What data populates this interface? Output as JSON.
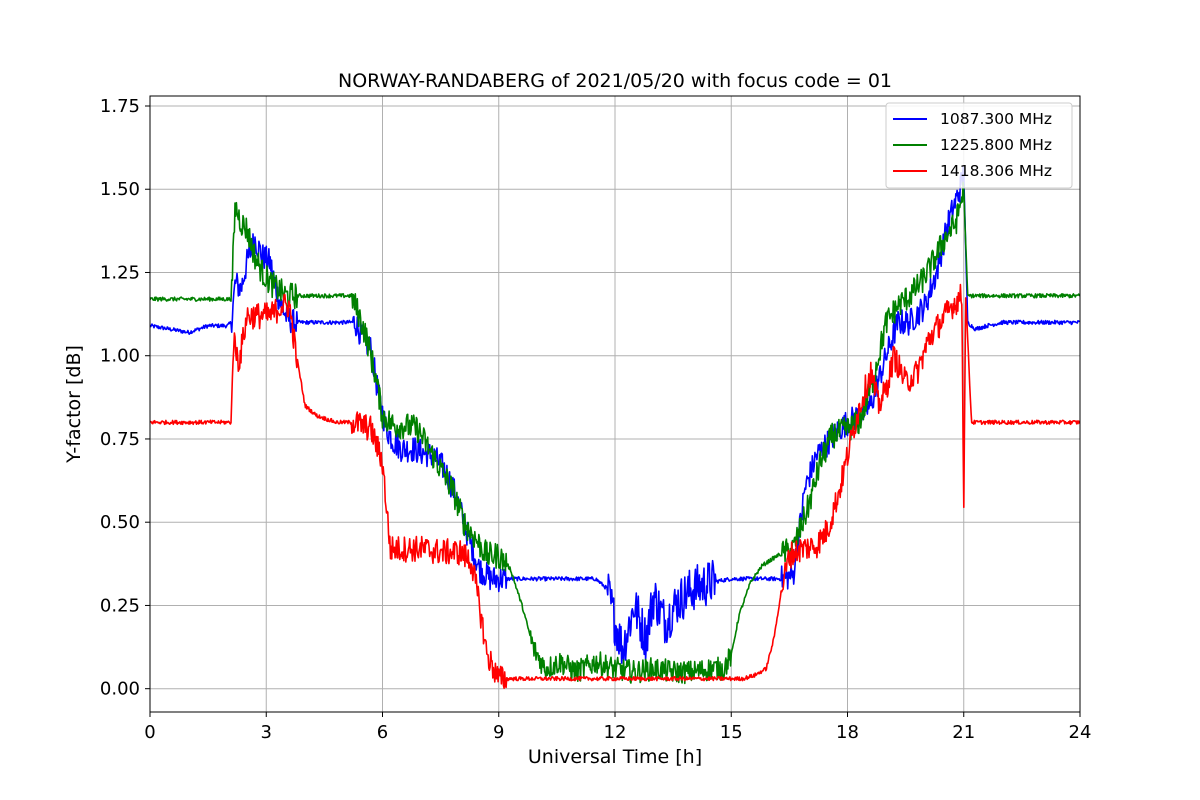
{
  "chart_data": {
    "type": "line",
    "title": "NORWAY-RANDABERG of 2021/05/20 with focus code = 01",
    "xlabel": "Universal Time [h]",
    "ylabel": "Y-factor [dB]",
    "xlim": [
      0,
      24
    ],
    "ylim": [
      -0.07,
      1.78
    ],
    "xticks": [
      0,
      3,
      6,
      9,
      12,
      15,
      18,
      21,
      24
    ],
    "xtick_labels": [
      "0",
      "3",
      "6",
      "9",
      "12",
      "15",
      "18",
      "21",
      "24"
    ],
    "yticks": [
      0.0,
      0.25,
      0.5,
      0.75,
      1.0,
      1.25,
      1.5,
      1.75
    ],
    "ytick_labels": [
      "0.00",
      "0.25",
      "0.50",
      "0.75",
      "1.00",
      "1.25",
      "1.50",
      "1.75"
    ],
    "grid": true,
    "legend_position": "top-right",
    "series": [
      {
        "name": "1087.300 MHz",
        "color": "#0000ff",
        "x": [
          0,
          0.5,
          1,
          1.5,
          2.0,
          2.1,
          2.2,
          2.35,
          2.5,
          2.7,
          2.9,
          3.1,
          3.3,
          3.5,
          3.7,
          4.0,
          4.5,
          5.0,
          5.3,
          5.5,
          5.7,
          5.9,
          6.1,
          6.3,
          6.5,
          6.8,
          7.0,
          7.3,
          7.6,
          7.9,
          8.2,
          8.5,
          8.8,
          9.2,
          9.5,
          10.0,
          10.5,
          11.0,
          11.5,
          11.8,
          12.0,
          12.2,
          12.5,
          12.8,
          13.0,
          13.3,
          13.6,
          14.0,
          14.5,
          15.0,
          15.3,
          15.6,
          16.0,
          16.3,
          16.6,
          16.9,
          17.2,
          17.5,
          17.8,
          18.0,
          18.3,
          18.6,
          19.0,
          19.3,
          19.6,
          20.0,
          20.3,
          20.6,
          20.9,
          21.0,
          21.1,
          21.3,
          21.6,
          22.0,
          22.5,
          23.0,
          23.5,
          24.0
        ],
        "y": [
          1.09,
          1.08,
          1.07,
          1.09,
          1.09,
          1.1,
          1.22,
          1.2,
          1.28,
          1.35,
          1.3,
          1.28,
          1.18,
          1.12,
          1.1,
          1.1,
          1.1,
          1.1,
          1.1,
          1.05,
          1.02,
          0.88,
          0.78,
          0.74,
          0.72,
          0.72,
          0.71,
          0.7,
          0.66,
          0.58,
          0.46,
          0.36,
          0.33,
          0.33,
          0.33,
          0.33,
          0.33,
          0.33,
          0.33,
          0.3,
          0.2,
          0.12,
          0.25,
          0.15,
          0.28,
          0.2,
          0.26,
          0.3,
          0.32,
          0.33,
          0.33,
          0.33,
          0.33,
          0.33,
          0.34,
          0.6,
          0.7,
          0.74,
          0.78,
          0.8,
          0.82,
          0.85,
          1.0,
          1.1,
          1.1,
          1.15,
          1.25,
          1.4,
          1.5,
          1.55,
          1.1,
          1.08,
          1.09,
          1.1,
          1.1,
          1.1,
          1.1,
          1.1
        ]
      },
      {
        "name": "1225.800 MHz",
        "color": "#008000",
        "x": [
          0,
          0.5,
          1,
          1.5,
          2.0,
          2.1,
          2.2,
          2.35,
          2.5,
          2.7,
          2.9,
          3.1,
          3.3,
          3.5,
          3.7,
          4.0,
          4.5,
          5.0,
          5.2,
          5.4,
          5.6,
          5.8,
          6.0,
          6.3,
          6.6,
          6.9,
          7.2,
          7.5,
          7.8,
          8.1,
          8.4,
          8.7,
          9.0,
          9.3,
          9.6,
          9.9,
          10.2,
          10.6,
          11.0,
          11.5,
          12.0,
          12.5,
          13.0,
          13.5,
          14.0,
          14.5,
          14.8,
          15.0,
          15.2,
          15.5,
          15.8,
          16.2,
          16.6,
          17.0,
          17.3,
          17.6,
          18.0,
          18.3,
          18.6,
          19.0,
          19.3,
          19.6,
          19.9,
          20.2,
          20.5,
          20.8,
          21.0,
          21.1,
          21.5,
          22.0,
          22.5,
          23.0,
          23.5,
          24.0
        ],
        "y": [
          1.17,
          1.17,
          1.17,
          1.17,
          1.17,
          1.17,
          1.45,
          1.4,
          1.38,
          1.3,
          1.25,
          1.22,
          1.2,
          1.18,
          1.18,
          1.18,
          1.18,
          1.18,
          1.18,
          1.12,
          1.05,
          0.95,
          0.82,
          0.79,
          0.79,
          0.78,
          0.72,
          0.66,
          0.6,
          0.5,
          0.45,
          0.4,
          0.4,
          0.36,
          0.25,
          0.12,
          0.06,
          0.08,
          0.05,
          0.08,
          0.06,
          0.05,
          0.06,
          0.05,
          0.05,
          0.06,
          0.06,
          0.1,
          0.22,
          0.32,
          0.37,
          0.4,
          0.42,
          0.55,
          0.68,
          0.76,
          0.78,
          0.8,
          0.9,
          1.1,
          1.15,
          1.18,
          1.22,
          1.28,
          1.35,
          1.4,
          1.5,
          1.18,
          1.18,
          1.18,
          1.18,
          1.18,
          1.18,
          1.18
        ]
      },
      {
        "name": "1418.306 MHz",
        "color": "#ff0000",
        "x": [
          0,
          0.5,
          1,
          1.5,
          2.0,
          2.1,
          2.15,
          2.3,
          2.5,
          2.8,
          3.1,
          3.4,
          3.6,
          3.75,
          3.9,
          4.0,
          4.3,
          4.8,
          5.3,
          5.7,
          6.0,
          6.2,
          6.3,
          6.6,
          7.0,
          7.5,
          8.0,
          8.3,
          8.5,
          8.7,
          9.0,
          9.5,
          10.0,
          10.5,
          11.0,
          11.5,
          12.0,
          12.5,
          13.0,
          13.5,
          14.0,
          14.5,
          15.0,
          15.3,
          15.6,
          15.9,
          16.1,
          16.3,
          16.5,
          16.8,
          17.2,
          17.5,
          17.8,
          18.0,
          18.2,
          18.4,
          18.6,
          18.8,
          19.0,
          19.2,
          19.5,
          19.8,
          20.1,
          20.4,
          20.7,
          20.95,
          21.0,
          21.05,
          21.2,
          21.5,
          22.0,
          22.5,
          23.0,
          23.5,
          24.0
        ],
        "y": [
          0.8,
          0.8,
          0.8,
          0.8,
          0.8,
          0.8,
          1.05,
          0.98,
          1.12,
          1.12,
          1.12,
          1.15,
          1.15,
          1.02,
          0.92,
          0.85,
          0.82,
          0.8,
          0.8,
          0.78,
          0.68,
          0.42,
          0.42,
          0.42,
          0.42,
          0.41,
          0.41,
          0.38,
          0.25,
          0.1,
          0.03,
          0.03,
          0.03,
          0.03,
          0.03,
          0.03,
          0.03,
          0.03,
          0.03,
          0.03,
          0.03,
          0.03,
          0.03,
          0.03,
          0.04,
          0.06,
          0.15,
          0.3,
          0.4,
          0.42,
          0.43,
          0.48,
          0.6,
          0.7,
          0.8,
          0.88,
          0.95,
          0.85,
          0.9,
          1.0,
          0.92,
          0.95,
          1.05,
          1.1,
          1.15,
          1.18,
          0.55,
          1.18,
          0.8,
          0.8,
          0.8,
          0.8,
          0.8,
          0.8,
          0.8
        ]
      }
    ]
  }
}
